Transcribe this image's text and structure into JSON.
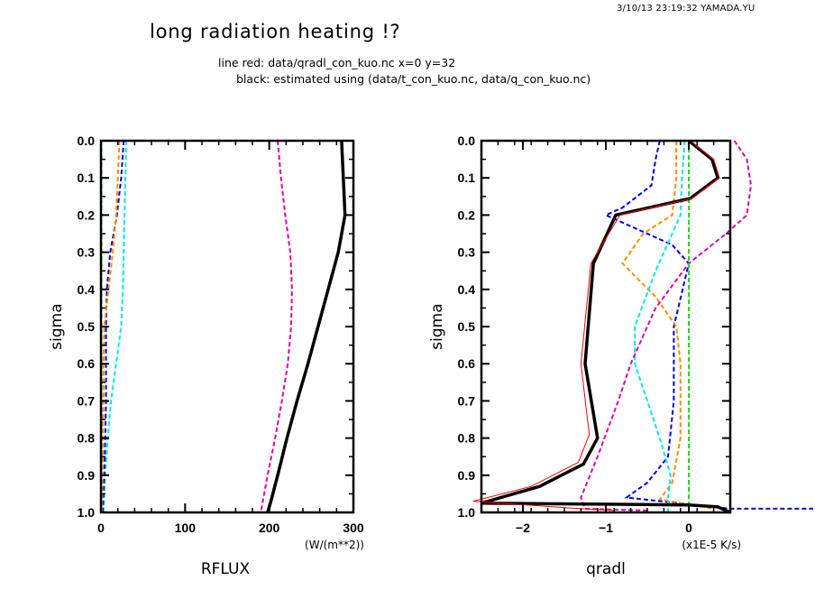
{
  "header": {
    "timestamp": "3/10/13 23:19:32 YAMADA.YU",
    "title": "long radiation heating !?",
    "subtitle_line1": "line red: data/qradl_con_kuo.nc x=0 y=32",
    "subtitle_line2": "black: estimated using (data/t_con_kuo.nc, data/q_con_kuo.nc)"
  },
  "chart_data": [
    {
      "type": "line",
      "name": "rflux",
      "title": "",
      "xlabel": "RFLUX",
      "xunit": "(W/(m**2))",
      "ylabel": "sigma",
      "xlim": [
        0,
        300
      ],
      "ylim": [
        1.0,
        0.0
      ],
      "y_inverted": true,
      "xticks": [
        0,
        100,
        200,
        300
      ],
      "xtick_labels": [
        "0",
        "100",
        "200",
        "300"
      ],
      "yticks": [
        0.0,
        0.1,
        0.2,
        0.3,
        0.4,
        0.5,
        0.6,
        0.7,
        0.8,
        0.9,
        1.0
      ],
      "ytick_labels": [
        "0.0",
        "0.1",
        "0.2",
        "0.3",
        "0.4",
        "0.5",
        "0.6",
        "0.7",
        "0.8",
        "0.9",
        "1.0"
      ],
      "grid": false,
      "series": [
        {
          "name": "black-total",
          "color": "#000000",
          "style": "solid-thick",
          "sigma": [
            0.0,
            0.1,
            0.2,
            0.3,
            0.4,
            0.5,
            0.6,
            0.7,
            0.8,
            0.9,
            0.97,
            1.0
          ],
          "values": [
            286,
            288,
            290,
            282,
            270,
            258,
            246,
            233,
            221,
            210,
            202,
            198
          ]
        },
        {
          "name": "magenta",
          "color": "#e000a8",
          "style": "dashed",
          "sigma": [
            0.0,
            0.1,
            0.2,
            0.3,
            0.4,
            0.5,
            0.6,
            0.7,
            0.8,
            0.9,
            1.0
          ],
          "values": [
            210,
            214,
            219,
            225,
            227,
            226,
            222,
            215,
            207,
            198,
            190
          ]
        },
        {
          "name": "cyan",
          "color": "#00e8e8",
          "style": "dashed",
          "sigma": [
            0.0,
            0.1,
            0.2,
            0.3,
            0.4,
            0.5,
            0.6,
            0.7,
            0.8,
            0.9,
            1.0
          ],
          "values": [
            30,
            29,
            28,
            27,
            26,
            24,
            18,
            12,
            8,
            5,
            3
          ]
        },
        {
          "name": "blue",
          "color": "#0000e0",
          "style": "dashed",
          "sigma": [
            0.0,
            0.1,
            0.2,
            0.3,
            0.4,
            0.5,
            0.6,
            0.7,
            0.8,
            0.9,
            1.0
          ],
          "values": [
            27,
            24,
            19,
            11,
            7,
            6,
            6,
            6,
            5,
            4,
            2
          ]
        },
        {
          "name": "orange",
          "color": "#ff8c00",
          "style": "dashed",
          "sigma": [
            0.0,
            0.1,
            0.2,
            0.3,
            0.4,
            0.5,
            0.6,
            0.7,
            0.8,
            0.9,
            1.0
          ],
          "values": [
            22,
            20,
            18,
            14,
            9,
            4,
            3,
            3,
            2,
            2,
            1
          ]
        },
        {
          "name": "green",
          "color": "#00e000",
          "style": "dashed",
          "sigma": [
            0.0,
            1.0
          ],
          "values": [
            0.5,
            0.5
          ]
        }
      ]
    },
    {
      "type": "line",
      "name": "qradl",
      "title": "",
      "xlabel": "qradl",
      "xunit": "(x1E-5 K/s)",
      "ylabel": "sigma",
      "xlim": [
        -2.5,
        0.5
      ],
      "ylim": [
        1.0,
        0.0
      ],
      "y_inverted": true,
      "xticks": [
        -2,
        -1,
        0
      ],
      "xtick_labels": [
        "−2",
        "−1",
        "0"
      ],
      "yticks": [
        0.0,
        0.1,
        0.2,
        0.3,
        0.4,
        0.5,
        0.6,
        0.7,
        0.8,
        0.9,
        1.0
      ],
      "ytick_labels": [
        "0.0",
        "0.1",
        "0.2",
        "0.3",
        "0.4",
        "0.5",
        "0.6",
        "0.7",
        "0.8",
        "0.9",
        "1.0"
      ],
      "grid": false,
      "series": [
        {
          "name": "black-estimated",
          "color": "#000000",
          "style": "solid-thick",
          "sigma": [
            0.0,
            0.05,
            0.1,
            0.155,
            0.2,
            0.33,
            0.6,
            0.8,
            0.87,
            0.93,
            0.975,
            0.978,
            0.98,
            0.985,
            1.0
          ],
          "values": [
            0.0,
            0.28,
            0.35,
            0.02,
            -0.88,
            -1.15,
            -1.25,
            -1.1,
            -1.27,
            -1.8,
            -2.5,
            -1.0,
            0.0,
            0.35,
            0.5
          ]
        },
        {
          "name": "red-qradl",
          "color": "#ff0000",
          "style": "solid-thin",
          "sigma": [
            0.0,
            0.05,
            0.1,
            0.155,
            0.2,
            0.33,
            0.6,
            0.79,
            0.865,
            0.93,
            0.97,
            0.99,
            0.995
          ],
          "values": [
            0.02,
            0.3,
            0.37,
            0.04,
            -0.83,
            -1.18,
            -1.3,
            -1.2,
            -1.33,
            -1.9,
            -2.6,
            -1.3,
            -0.9
          ]
        },
        {
          "name": "blue",
          "color": "#0000e0",
          "style": "dashed",
          "sigma": [
            0.0,
            0.05,
            0.12,
            0.18,
            0.2,
            0.23,
            0.28,
            0.33,
            0.5,
            0.7,
            0.85,
            0.92,
            0.96,
            0.99,
            0.99
          ],
          "values": [
            -0.35,
            -0.4,
            -0.45,
            -0.8,
            -1.0,
            -0.7,
            -0.2,
            0.0,
            -0.18,
            -0.18,
            -0.25,
            -0.5,
            -0.75,
            0.5,
            1.5
          ]
        },
        {
          "name": "orange",
          "color": "#ff8c00",
          "style": "dashed",
          "sigma": [
            0.0,
            0.1,
            0.2,
            0.25,
            0.33,
            0.42,
            0.5,
            0.6,
            0.8,
            0.92,
            0.965,
            0.99
          ],
          "values": [
            -0.15,
            -0.15,
            -0.2,
            -0.55,
            -0.8,
            -0.4,
            -0.15,
            -0.1,
            -0.1,
            -0.2,
            -0.35,
            0.3
          ]
        },
        {
          "name": "cyan",
          "color": "#00e8e8",
          "style": "dashed",
          "sigma": [
            0.0,
            0.1,
            0.2,
            0.25,
            0.35,
            0.5,
            0.6,
            0.7,
            0.8,
            0.9,
            0.96,
            1.0
          ],
          "values": [
            -0.05,
            -0.08,
            -0.1,
            -0.2,
            -0.4,
            -0.65,
            -0.65,
            -0.5,
            -0.35,
            -0.22,
            -0.25,
            -0.25
          ]
        },
        {
          "name": "magenta",
          "color": "#e000a8",
          "style": "dashed",
          "sigma": [
            0.0,
            0.05,
            0.12,
            0.2,
            0.25,
            0.33,
            0.45,
            0.6,
            0.7,
            0.85,
            0.96,
            0.99,
            0.995
          ],
          "values": [
            0.55,
            0.7,
            0.75,
            0.7,
            0.45,
            0.0,
            -0.4,
            -0.7,
            -0.85,
            -1.1,
            -1.3,
            -1.25,
            -0.5
          ]
        },
        {
          "name": "green",
          "color": "#00e000",
          "style": "dashed",
          "sigma": [
            0.0,
            1.0
          ],
          "values": [
            0.0,
            0.0
          ]
        }
      ]
    }
  ]
}
